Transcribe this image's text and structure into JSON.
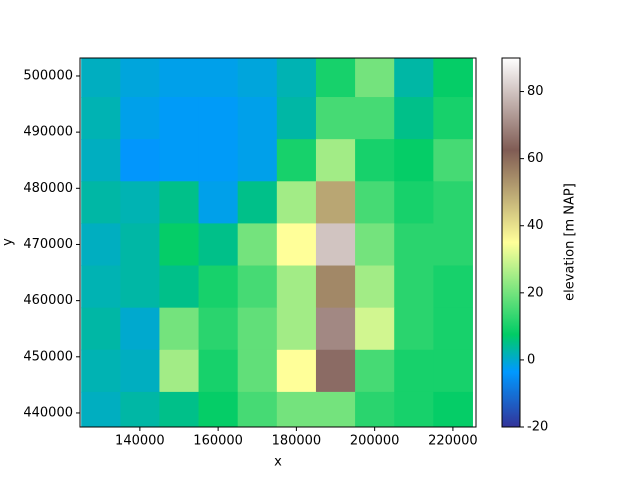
{
  "chart_data": {
    "type": "heatmap",
    "x_label": "x",
    "y_label": "y",
    "colorbar_label": "elevation [m NAP]",
    "colormap": "terrain",
    "x": [
      130000,
      140000,
      150000,
      160000,
      170000,
      180000,
      190000,
      200000,
      210000,
      220000
    ],
    "y": [
      500000,
      492500,
      485000,
      477500,
      470000,
      462500,
      455000,
      447500,
      440000
    ],
    "values": [
      [
        1,
        -1,
        -2,
        -2,
        -1,
        2,
        10,
        20,
        3,
        8
      ],
      [
        2,
        -2,
        -3,
        -3,
        -2,
        3,
        15,
        15,
        5,
        10
      ],
      [
        1,
        -4,
        -3,
        -3,
        -2,
        10,
        25,
        10,
        8,
        15
      ],
      [
        3,
        2,
        5,
        -2,
        5,
        25,
        50,
        15,
        10,
        12
      ],
      [
        1,
        3,
        8,
        5,
        20,
        35,
        80,
        20,
        12,
        12
      ],
      [
        2,
        3,
        5,
        10,
        15,
        25,
        55,
        25,
        12,
        10
      ],
      [
        3,
        0,
        20,
        12,
        18,
        25,
        70,
        30,
        12,
        10
      ],
      [
        2,
        1,
        25,
        10,
        18,
        35,
        65,
        15,
        10,
        10
      ],
      [
        1,
        3,
        5,
        8,
        15,
        20,
        20,
        12,
        10,
        8
      ]
    ],
    "xlim": [
      124700,
      225900
    ],
    "ylim": [
      437500,
      503200
    ],
    "clim": [
      -20,
      90
    ],
    "xticks": [
      140000,
      160000,
      180000,
      200000,
      220000
    ],
    "yticks": [
      440000,
      450000,
      460000,
      470000,
      480000,
      490000,
      500000
    ],
    "cticks": [
      -20,
      0,
      20,
      40,
      60,
      80
    ]
  }
}
